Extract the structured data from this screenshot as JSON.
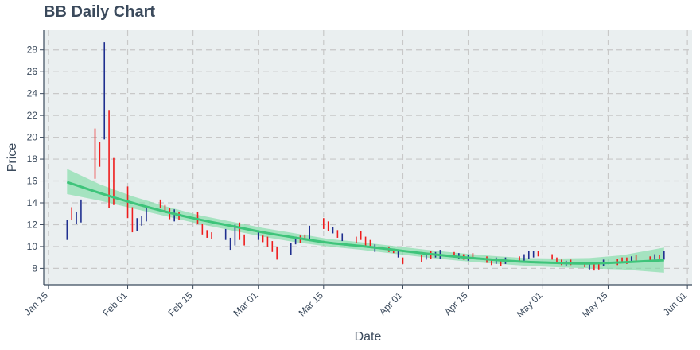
{
  "chart_data": {
    "type": "ohlc",
    "title": "BB Daily Chart",
    "xlabel": "Date",
    "ylabel": "Price",
    "year": 2021,
    "xlim": [
      "2021-01-14",
      "2021-06-02"
    ],
    "ylim": [
      6.5,
      29.8
    ],
    "x_ticks": [
      "Jan 15",
      "Feb 01",
      "Feb 15",
      "Mar 01",
      "Mar 15",
      "Apr 01",
      "Apr 15",
      "May 01",
      "May 15",
      "Jun 01"
    ],
    "x_tick_dates": [
      "2021-01-15",
      "2021-02-01",
      "2021-02-15",
      "2021-03-01",
      "2021-03-15",
      "2021-04-01",
      "2021-04-15",
      "2021-05-01",
      "2021-05-15",
      "2021-06-01"
    ],
    "y_ticks": [
      8,
      10,
      12,
      14,
      16,
      18,
      20,
      22,
      24,
      26,
      28
    ],
    "grid": true,
    "colors": {
      "up": "#1f2f8f",
      "down": "#ee1c1c",
      "trend": "#3ec47a",
      "band": "#7fdba6",
      "plot_bg": "#eaeff0",
      "grid": "#c8c8c8",
      "text": "#3b4a5c"
    },
    "candles": [
      {
        "date": "2021-01-19",
        "low": 10.6,
        "high": 12.4,
        "dir": "up"
      },
      {
        "date": "2021-01-20",
        "low": 12.4,
        "high": 13.6,
        "dir": "down"
      },
      {
        "date": "2021-01-21",
        "low": 12.1,
        "high": 13.2,
        "dir": "up"
      },
      {
        "date": "2021-01-22",
        "low": 12.2,
        "high": 14.3,
        "dir": "up"
      },
      {
        "date": "2021-01-25",
        "low": 16.2,
        "high": 20.8,
        "dir": "down"
      },
      {
        "date": "2021-01-26",
        "low": 17.3,
        "high": 19.6,
        "dir": "down"
      },
      {
        "date": "2021-01-27",
        "low": 19.8,
        "high": 28.7,
        "dir": "up"
      },
      {
        "date": "2021-01-28",
        "low": 13.5,
        "high": 22.5,
        "dir": "down"
      },
      {
        "date": "2021-01-29",
        "low": 13.8,
        "high": 18.1,
        "dir": "down"
      },
      {
        "date": "2021-02-01",
        "low": 12.6,
        "high": 15.5,
        "dir": "down"
      },
      {
        "date": "2021-02-02",
        "low": 11.3,
        "high": 13.6,
        "dir": "down"
      },
      {
        "date": "2021-02-03",
        "low": 11.4,
        "high": 12.6,
        "dir": "up"
      },
      {
        "date": "2021-02-04",
        "low": 11.9,
        "high": 12.8,
        "dir": "up"
      },
      {
        "date": "2021-02-05",
        "low": 12.3,
        "high": 13.6,
        "dir": "up"
      },
      {
        "date": "2021-02-08",
        "low": 13.5,
        "high": 14.3,
        "dir": "down"
      },
      {
        "date": "2021-02-09",
        "low": 13.1,
        "high": 13.8,
        "dir": "down"
      },
      {
        "date": "2021-02-10",
        "low": 12.5,
        "high": 13.5,
        "dir": "down"
      },
      {
        "date": "2021-02-11",
        "low": 12.3,
        "high": 13.4,
        "dir": "up"
      },
      {
        "date": "2021-02-12",
        "low": 12.4,
        "high": 13.2,
        "dir": "down"
      },
      {
        "date": "2021-02-16",
        "low": 12.1,
        "high": 13.2,
        "dir": "down"
      },
      {
        "date": "2021-02-17",
        "low": 11.1,
        "high": 12.1,
        "dir": "down"
      },
      {
        "date": "2021-02-18",
        "low": 10.8,
        "high": 11.5,
        "dir": "down"
      },
      {
        "date": "2021-02-19",
        "low": 10.7,
        "high": 11.3,
        "dir": "down"
      },
      {
        "date": "2021-02-22",
        "low": 10.6,
        "high": 11.6,
        "dir": "up"
      },
      {
        "date": "2021-02-23",
        "low": 9.7,
        "high": 10.8,
        "dir": "up"
      },
      {
        "date": "2021-02-24",
        "low": 10.1,
        "high": 12.0,
        "dir": "up"
      },
      {
        "date": "2021-02-25",
        "low": 10.6,
        "high": 12.2,
        "dir": "down"
      },
      {
        "date": "2021-02-26",
        "low": 10.1,
        "high": 11.1,
        "dir": "down"
      },
      {
        "date": "2021-03-01",
        "low": 10.6,
        "high": 11.4,
        "dir": "up"
      },
      {
        "date": "2021-03-02",
        "low": 10.4,
        "high": 11.0,
        "dir": "down"
      },
      {
        "date": "2021-03-03",
        "low": 10.0,
        "high": 10.9,
        "dir": "down"
      },
      {
        "date": "2021-03-04",
        "low": 9.5,
        "high": 10.5,
        "dir": "down"
      },
      {
        "date": "2021-03-05",
        "low": 8.8,
        "high": 10.0,
        "dir": "down"
      },
      {
        "date": "2021-03-08",
        "low": 9.2,
        "high": 10.3,
        "dir": "up"
      },
      {
        "date": "2021-03-09",
        "low": 10.2,
        "high": 10.9,
        "dir": "up"
      },
      {
        "date": "2021-03-10",
        "low": 10.3,
        "high": 11.0,
        "dir": "down"
      },
      {
        "date": "2021-03-11",
        "low": 10.6,
        "high": 11.1,
        "dir": "down"
      },
      {
        "date": "2021-03-12",
        "low": 10.5,
        "high": 11.9,
        "dir": "up"
      },
      {
        "date": "2021-03-15",
        "low": 11.6,
        "high": 12.6,
        "dir": "down"
      },
      {
        "date": "2021-03-16",
        "low": 11.4,
        "high": 12.3,
        "dir": "down"
      },
      {
        "date": "2021-03-17",
        "low": 11.2,
        "high": 11.8,
        "dir": "up"
      },
      {
        "date": "2021-03-18",
        "low": 10.8,
        "high": 11.5,
        "dir": "down"
      },
      {
        "date": "2021-03-19",
        "low": 10.5,
        "high": 11.2,
        "dir": "up"
      },
      {
        "date": "2021-03-22",
        "low": 10.3,
        "high": 10.9,
        "dir": "down"
      },
      {
        "date": "2021-03-23",
        "low": 10.6,
        "high": 11.4,
        "dir": "down"
      },
      {
        "date": "2021-03-24",
        "low": 10.1,
        "high": 10.9,
        "dir": "down"
      },
      {
        "date": "2021-03-25",
        "low": 9.9,
        "high": 10.6,
        "dir": "down"
      },
      {
        "date": "2021-03-26",
        "low": 9.5,
        "high": 10.2,
        "dir": "up"
      },
      {
        "date": "2021-03-29",
        "low": 9.5,
        "high": 10.0,
        "dir": "down"
      },
      {
        "date": "2021-03-30",
        "low": 9.4,
        "high": 9.8,
        "dir": "down"
      },
      {
        "date": "2021-03-31",
        "low": 9.0,
        "high": 9.6,
        "dir": "up"
      },
      {
        "date": "2021-04-01",
        "low": 8.4,
        "high": 9.0,
        "dir": "down"
      },
      {
        "date": "2021-04-05",
        "low": 8.6,
        "high": 9.2,
        "dir": "down"
      },
      {
        "date": "2021-04-06",
        "low": 8.8,
        "high": 9.4,
        "dir": "up"
      },
      {
        "date": "2021-04-07",
        "low": 8.9,
        "high": 9.6,
        "dir": "down"
      },
      {
        "date": "2021-04-08",
        "low": 9.0,
        "high": 9.5,
        "dir": "up"
      },
      {
        "date": "2021-04-09",
        "low": 8.9,
        "high": 9.7,
        "dir": "up"
      },
      {
        "date": "2021-04-12",
        "low": 9.0,
        "high": 9.5,
        "dir": "down"
      },
      {
        "date": "2021-04-13",
        "low": 8.9,
        "high": 9.4,
        "dir": "up"
      },
      {
        "date": "2021-04-14",
        "low": 8.8,
        "high": 9.3,
        "dir": "down"
      },
      {
        "date": "2021-04-15",
        "low": 8.7,
        "high": 9.2,
        "dir": "up"
      },
      {
        "date": "2021-04-16",
        "low": 8.9,
        "high": 9.4,
        "dir": "down"
      },
      {
        "date": "2021-04-19",
        "low": 8.5,
        "high": 9.1,
        "dir": "down"
      },
      {
        "date": "2021-04-20",
        "low": 8.3,
        "high": 8.9,
        "dir": "down"
      },
      {
        "date": "2021-04-21",
        "low": 8.4,
        "high": 9.0,
        "dir": "up"
      },
      {
        "date": "2021-04-22",
        "low": 8.2,
        "high": 8.8,
        "dir": "down"
      },
      {
        "date": "2021-04-23",
        "low": 8.4,
        "high": 9.0,
        "dir": "up"
      },
      {
        "date": "2021-04-26",
        "low": 8.6,
        "high": 9.1,
        "dir": "down"
      },
      {
        "date": "2021-04-27",
        "low": 8.7,
        "high": 9.3,
        "dir": "up"
      },
      {
        "date": "2021-04-28",
        "low": 8.9,
        "high": 9.6,
        "dir": "up"
      },
      {
        "date": "2021-04-29",
        "low": 9.0,
        "high": 9.6,
        "dir": "up"
      },
      {
        "date": "2021-04-30",
        "low": 9.1,
        "high": 9.6,
        "dir": "down"
      },
      {
        "date": "2021-05-03",
        "low": 8.8,
        "high": 9.3,
        "dir": "down"
      },
      {
        "date": "2021-05-04",
        "low": 8.4,
        "high": 9.0,
        "dir": "down"
      },
      {
        "date": "2021-05-05",
        "low": 8.3,
        "high": 8.8,
        "dir": "down"
      },
      {
        "date": "2021-05-06",
        "low": 8.2,
        "high": 8.7,
        "dir": "up"
      },
      {
        "date": "2021-05-07",
        "low": 8.3,
        "high": 8.8,
        "dir": "down"
      },
      {
        "date": "2021-05-10",
        "low": 8.1,
        "high": 8.6,
        "dir": "down"
      },
      {
        "date": "2021-05-11",
        "low": 7.9,
        "high": 8.5,
        "dir": "up"
      },
      {
        "date": "2021-05-12",
        "low": 7.8,
        "high": 8.4,
        "dir": "down"
      },
      {
        "date": "2021-05-13",
        "low": 7.9,
        "high": 8.6,
        "dir": "down"
      },
      {
        "date": "2021-05-14",
        "low": 8.2,
        "high": 8.8,
        "dir": "up"
      },
      {
        "date": "2021-05-17",
        "low": 8.3,
        "high": 8.9,
        "dir": "down"
      },
      {
        "date": "2021-05-18",
        "low": 8.5,
        "high": 9.0,
        "dir": "down"
      },
      {
        "date": "2021-05-19",
        "low": 8.4,
        "high": 9.0,
        "dir": "down"
      },
      {
        "date": "2021-05-20",
        "low": 8.6,
        "high": 9.1,
        "dir": "up"
      },
      {
        "date": "2021-05-21",
        "low": 8.7,
        "high": 9.2,
        "dir": "down"
      },
      {
        "date": "2021-05-24",
        "low": 8.6,
        "high": 9.1,
        "dir": "down"
      },
      {
        "date": "2021-05-25",
        "low": 8.8,
        "high": 9.3,
        "dir": "up"
      },
      {
        "date": "2021-05-26",
        "low": 8.7,
        "high": 9.2,
        "dir": "down"
      },
      {
        "date": "2021-05-27",
        "low": 8.8,
        "high": 9.6,
        "dir": "up"
      }
    ],
    "trend": [
      {
        "date": "2021-01-19",
        "fit": 15.9,
        "lo": 14.8,
        "hi": 17.1
      },
      {
        "date": "2021-01-26",
        "fit": 14.9,
        "lo": 14.2,
        "hi": 15.7
      },
      {
        "date": "2021-02-02",
        "fit": 14.0,
        "lo": 13.5,
        "hi": 14.6
      },
      {
        "date": "2021-02-09",
        "fit": 13.2,
        "lo": 12.8,
        "hi": 13.7
      },
      {
        "date": "2021-02-16",
        "fit": 12.5,
        "lo": 12.1,
        "hi": 12.9
      },
      {
        "date": "2021-02-23",
        "fit": 11.9,
        "lo": 11.5,
        "hi": 12.3
      },
      {
        "date": "2021-03-02",
        "fit": 11.3,
        "lo": 10.9,
        "hi": 11.7
      },
      {
        "date": "2021-03-09",
        "fit": 10.8,
        "lo": 10.4,
        "hi": 11.2
      },
      {
        "date": "2021-03-16",
        "fit": 10.35,
        "lo": 10.0,
        "hi": 10.7
      },
      {
        "date": "2021-03-23",
        "fit": 10.05,
        "lo": 9.7,
        "hi": 10.4
      },
      {
        "date": "2021-03-30",
        "fit": 9.7,
        "lo": 9.35,
        "hi": 10.05
      },
      {
        "date": "2021-04-06",
        "fit": 9.35,
        "lo": 9.0,
        "hi": 9.7
      },
      {
        "date": "2021-04-13",
        "fit": 9.05,
        "lo": 8.7,
        "hi": 9.4
      },
      {
        "date": "2021-04-20",
        "fit": 8.8,
        "lo": 8.45,
        "hi": 9.15
      },
      {
        "date": "2021-04-27",
        "fit": 8.6,
        "lo": 8.25,
        "hi": 8.95
      },
      {
        "date": "2021-05-04",
        "fit": 8.5,
        "lo": 8.1,
        "hi": 8.9
      },
      {
        "date": "2021-05-11",
        "fit": 8.45,
        "lo": 8.0,
        "hi": 8.95
      },
      {
        "date": "2021-05-18",
        "fit": 8.55,
        "lo": 7.9,
        "hi": 9.2
      },
      {
        "date": "2021-05-27",
        "fit": 8.75,
        "lo": 7.6,
        "hi": 9.9
      }
    ]
  }
}
